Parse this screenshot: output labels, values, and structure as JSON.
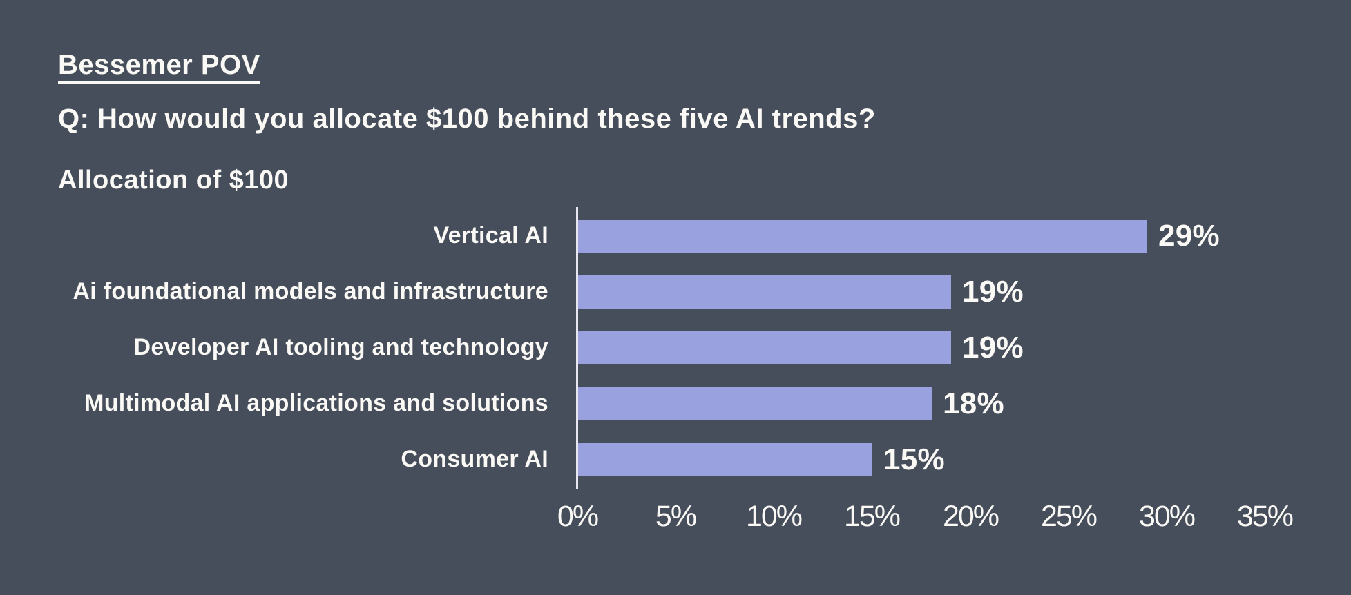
{
  "header": {
    "title": "Bessemer POV",
    "question": "Q: How would you allocate $100 behind these five AI trends?"
  },
  "chart": {
    "title": "Allocation of $100"
  },
  "chart_data": {
    "type": "bar",
    "orientation": "horizontal",
    "title": "Allocation of $100",
    "categories": [
      "Vertical AI",
      "Ai foundational models and infrastructure",
      "Developer AI tooling and technology",
      "Multimodal AI applications and solutions",
      "Consumer AI"
    ],
    "values": [
      29,
      19,
      19,
      18,
      15
    ],
    "value_labels": [
      "29%",
      "19%",
      "19%",
      "18%",
      "15%"
    ],
    "x_ticks": [
      "0%",
      "5%",
      "10%",
      "15%",
      "20%",
      "25%",
      "30%",
      "35%"
    ],
    "xlim": [
      0,
      35
    ],
    "xlabel": "",
    "ylabel": "",
    "grid": false,
    "legend": false,
    "background": "#474E5B",
    "bar_color": "#99A1DF",
    "axis_line_color": "#E8E6F1",
    "text_color": "#FAF9F5"
  }
}
